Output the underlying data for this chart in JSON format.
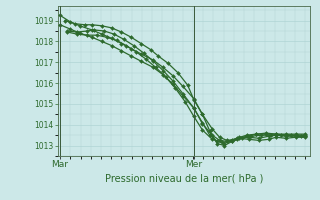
{
  "title": "Pression niveau de la mer( hPa )",
  "background_color": "#cce8e8",
  "grid_color": "#b0d4d4",
  "line_color": "#2d6a2d",
  "marker": "D",
  "markersize": 2.0,
  "linewidth": 0.9,
  "ylim": [
    1012.5,
    1019.7
  ],
  "yticks": [
    1013,
    1014,
    1015,
    1016,
    1017,
    1018,
    1019
  ],
  "xtick_labels": [
    "Mar",
    "Mer"
  ],
  "xtick_positions": [
    0.0,
    0.545
  ],
  "vline_positions": [
    0.0,
    0.545
  ],
  "lines": [
    {
      "x": [
        0.0,
        0.04,
        0.08,
        0.13,
        0.17,
        0.21,
        0.25,
        0.29,
        0.33,
        0.38,
        0.42,
        0.46,
        0.5,
        0.545,
        0.58,
        0.61,
        0.64,
        0.67,
        0.7,
        0.73,
        0.77,
        0.81,
        0.85,
        0.88,
        0.92,
        0.96,
        1.0
      ],
      "y": [
        1019.25,
        1018.95,
        1018.75,
        1018.55,
        1018.35,
        1018.15,
        1017.9,
        1017.65,
        1017.4,
        1017.1,
        1016.75,
        1016.35,
        1015.85,
        1015.25,
        1014.5,
        1013.7,
        1013.1,
        1013.0,
        1013.2,
        1013.35,
        1013.3,
        1013.25,
        1013.3,
        1013.4,
        1013.35,
        1013.4,
        1013.4
      ]
    },
    {
      "x": [
        0.0,
        0.04,
        0.08,
        0.13,
        0.17,
        0.21,
        0.25,
        0.29,
        0.33,
        0.38,
        0.42,
        0.46,
        0.5,
        0.545,
        0.58,
        0.61,
        0.64,
        0.67,
        0.7,
        0.73,
        0.77,
        0.81,
        0.85,
        0.88,
        0.92,
        0.96,
        1.0
      ],
      "y": [
        1018.8,
        1018.6,
        1018.4,
        1018.2,
        1018.0,
        1017.8,
        1017.55,
        1017.3,
        1017.05,
        1016.75,
        1016.4,
        1015.95,
        1015.4,
        1014.8,
        1014.1,
        1013.5,
        1013.2,
        1013.1,
        1013.25,
        1013.4,
        1013.4,
        1013.35,
        1013.45,
        1013.5,
        1013.45,
        1013.45,
        1013.45
      ]
    },
    {
      "x": [
        0.02,
        0.06,
        0.1,
        0.13,
        0.17,
        0.21,
        0.25,
        0.29,
        0.33,
        0.37,
        0.4,
        0.44,
        0.48,
        0.52,
        0.545,
        0.58,
        0.62,
        0.65,
        0.68,
        0.72,
        0.76,
        0.8,
        0.84,
        0.88,
        0.92,
        0.96,
        1.0
      ],
      "y": [
        1019.0,
        1018.85,
        1018.8,
        1018.8,
        1018.75,
        1018.65,
        1018.45,
        1018.2,
        1017.9,
        1017.6,
        1017.3,
        1016.95,
        1016.5,
        1015.9,
        1015.2,
        1014.5,
        1013.8,
        1013.4,
        1013.25,
        1013.3,
        1013.45,
        1013.55,
        1013.55,
        1013.55,
        1013.5,
        1013.5,
        1013.5
      ]
    },
    {
      "x": [
        0.03,
        0.07,
        0.11,
        0.14,
        0.18,
        0.22,
        0.26,
        0.3,
        0.34,
        0.38,
        0.42,
        0.46,
        0.5,
        0.545,
        0.58,
        0.62,
        0.65,
        0.68,
        0.72,
        0.76,
        0.8,
        0.84,
        0.88,
        0.92,
        0.96,
        1.0
      ],
      "y": [
        1018.5,
        1018.45,
        1018.5,
        1018.55,
        1018.5,
        1018.35,
        1018.1,
        1017.8,
        1017.45,
        1017.05,
        1016.6,
        1016.1,
        1015.5,
        1014.8,
        1014.05,
        1013.5,
        1013.25,
        1013.2,
        1013.35,
        1013.5,
        1013.55,
        1013.6,
        1013.55,
        1013.55,
        1013.55,
        1013.55
      ]
    },
    {
      "x": [
        0.03,
        0.07,
        0.11,
        0.15,
        0.19,
        0.23,
        0.27,
        0.31,
        0.35,
        0.39,
        0.43,
        0.47,
        0.51,
        0.545,
        0.58,
        0.62,
        0.66,
        0.7,
        0.74,
        0.78,
        0.82,
        0.86,
        0.9,
        0.94,
        0.98,
        1.0
      ],
      "y": [
        1018.45,
        1018.35,
        1018.3,
        1018.3,
        1018.2,
        1018.05,
        1017.8,
        1017.5,
        1017.15,
        1016.75,
        1016.3,
        1015.75,
        1015.1,
        1014.4,
        1013.75,
        1013.3,
        1013.15,
        1013.2,
        1013.35,
        1013.45,
        1013.5,
        1013.5,
        1013.5,
        1013.5,
        1013.45,
        1013.45
      ]
    }
  ]
}
